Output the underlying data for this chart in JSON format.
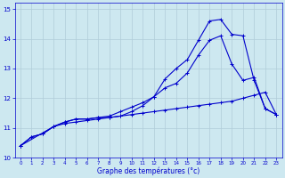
{
  "xlabel": "Graphe des températures (°c)",
  "bg_color": "#cde8f0",
  "grid_color": "#b0ccd8",
  "line_color": "#0000cc",
  "xlim": [
    -0.5,
    23.5
  ],
  "ylim": [
    10.0,
    15.2
  ],
  "yticks": [
    10,
    11,
    12,
    13,
    14,
    15
  ],
  "xticks": [
    0,
    1,
    2,
    3,
    4,
    5,
    6,
    7,
    8,
    9,
    10,
    11,
    12,
    13,
    14,
    15,
    16,
    17,
    18,
    19,
    20,
    21,
    22,
    23
  ],
  "line1_x": [
    0,
    1,
    2,
    3,
    4,
    5,
    6,
    7,
    8,
    9,
    10,
    11,
    12,
    13,
    14,
    15,
    16,
    17,
    18,
    19,
    20,
    21,
    22,
    23
  ],
  "line1_y": [
    10.4,
    10.7,
    10.8,
    11.05,
    11.15,
    11.2,
    11.25,
    11.3,
    11.35,
    11.4,
    11.45,
    11.5,
    11.55,
    11.6,
    11.65,
    11.7,
    11.75,
    11.8,
    11.85,
    11.9,
    12.0,
    12.1,
    12.2,
    11.45
  ],
  "line2_x": [
    0,
    1,
    2,
    3,
    4,
    5,
    6,
    7,
    8,
    9,
    10,
    11,
    12,
    13,
    14,
    15,
    16,
    17,
    18,
    19,
    20,
    21,
    22,
    23
  ],
  "line2_y": [
    10.4,
    10.7,
    10.8,
    11.05,
    11.2,
    11.3,
    11.3,
    11.35,
    11.4,
    11.55,
    11.7,
    11.85,
    12.05,
    12.35,
    12.5,
    12.85,
    13.45,
    13.95,
    14.1,
    13.15,
    12.6,
    12.7,
    11.65,
    11.45
  ],
  "line3_x": [
    0,
    3,
    4,
    5,
    6,
    7,
    8,
    9,
    10,
    11,
    12,
    13,
    14,
    15,
    16,
    17,
    18,
    19,
    20,
    21,
    22,
    23
  ],
  "line3_y": [
    10.4,
    11.05,
    11.2,
    11.3,
    11.3,
    11.35,
    11.35,
    11.4,
    11.55,
    11.75,
    12.05,
    12.65,
    13.0,
    13.3,
    13.95,
    14.6,
    14.65,
    14.15,
    14.1,
    12.6,
    11.65,
    11.45
  ]
}
